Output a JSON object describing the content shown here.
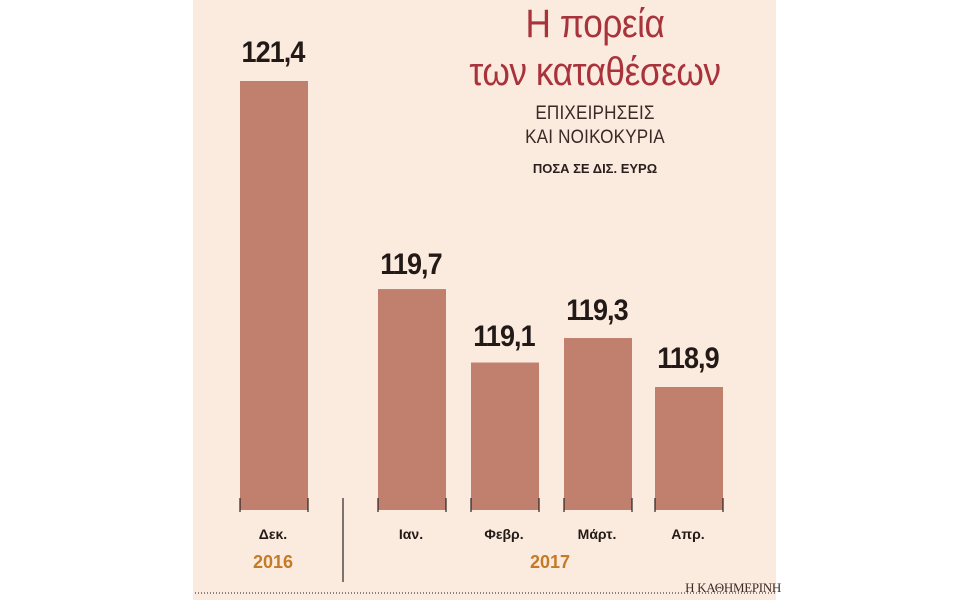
{
  "chart_data": {
    "type": "bar",
    "title": "Η πορεία των καταθέσεων",
    "title_lines": [
      "Η πορεία",
      "των καταθέσεων"
    ],
    "subtitle_lines": [
      "ΕΠΙΧΕΙΡΗΣΕΙΣ",
      "ΚΑΙ ΝΟΙΚΟΚΥΡΙΑ"
    ],
    "units": "ΠΟΣΑ ΣΕ ΔΙΣ. ΕΥΡΩ",
    "categories": [
      "Δεκ.",
      "Ιαν.",
      "Φεβρ.",
      "Μάρτ.",
      "Απρ."
    ],
    "values": [
      121.4,
      119.7,
      119.1,
      119.3,
      118.9
    ],
    "value_labels": [
      "121,4",
      "119,7",
      "119,1",
      "119,3",
      "118,9"
    ],
    "years": [
      {
        "label": "2016",
        "categories": [
          "Δεκ."
        ]
      },
      {
        "label": "2017",
        "categories": [
          "Ιαν.",
          "Φεβρ.",
          "Μάρτ.",
          "Απρ."
        ]
      }
    ],
    "grid": false,
    "legend": "none",
    "colors": {
      "bar": "#c17f6e",
      "title": "#a9333b",
      "year": "#c47a26",
      "background": "#fbebdf"
    }
  },
  "source": "Η ΚΑΘΗΜΕΡΙΝΗ"
}
